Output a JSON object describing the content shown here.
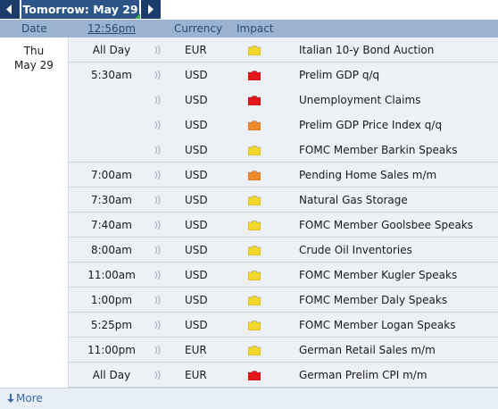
{
  "nav": {
    "day_label": "Tomorrow: May 29",
    "prev_icon": "chevron-left-icon",
    "next_icon": "chevron-right-icon"
  },
  "columns": {
    "date": "Date",
    "time": "12:56pm",
    "currency": "Currency",
    "impact": "Impact"
  },
  "date": {
    "day": "Thu",
    "month_day": "May 29"
  },
  "colors": {
    "high": "#e3171c",
    "medium": "#f08a2c",
    "low": "#f3d72a",
    "header_bg": "#9bb2d1",
    "nav_bg": "#1c3d6b"
  },
  "events": [
    {
      "time": "All Day",
      "currency": "EUR",
      "impact": "low",
      "title": "Italian 10-y Bond Auction"
    },
    {
      "time": "5:30am",
      "currency": "USD",
      "impact": "high",
      "title": "Prelim GDP q/q"
    },
    {
      "time": "",
      "currency": "USD",
      "impact": "high",
      "title": "Unemployment Claims"
    },
    {
      "time": "",
      "currency": "USD",
      "impact": "medium",
      "title": "Prelim GDP Price Index q/q"
    },
    {
      "time": "",
      "currency": "USD",
      "impact": "low",
      "title": "FOMC Member Barkin Speaks"
    },
    {
      "time": "7:00am",
      "currency": "USD",
      "impact": "medium",
      "title": "Pending Home Sales m/m"
    },
    {
      "time": "7:30am",
      "currency": "USD",
      "impact": "low",
      "title": "Natural Gas Storage"
    },
    {
      "time": "7:40am",
      "currency": "USD",
      "impact": "low",
      "title": "FOMC Member Goolsbee Speaks"
    },
    {
      "time": "8:00am",
      "currency": "USD",
      "impact": "low",
      "title": "Crude Oil Inventories"
    },
    {
      "time": "11:00am",
      "currency": "USD",
      "impact": "low",
      "title": "FOMC Member Kugler Speaks"
    },
    {
      "time": "1:00pm",
      "currency": "USD",
      "impact": "low",
      "title": "FOMC Member Daly Speaks"
    },
    {
      "time": "5:25pm",
      "currency": "USD",
      "impact": "low",
      "title": "FOMC Member Logan Speaks"
    },
    {
      "time": "11:00pm",
      "currency": "EUR",
      "impact": "low",
      "title": "German Retail Sales m/m"
    },
    {
      "time": "All Day",
      "currency": "EUR",
      "impact": "high",
      "title": "German Prelim CPI m/m"
    }
  ],
  "footer": {
    "more_label": "More",
    "more_icon": "download-arrow-icon"
  }
}
